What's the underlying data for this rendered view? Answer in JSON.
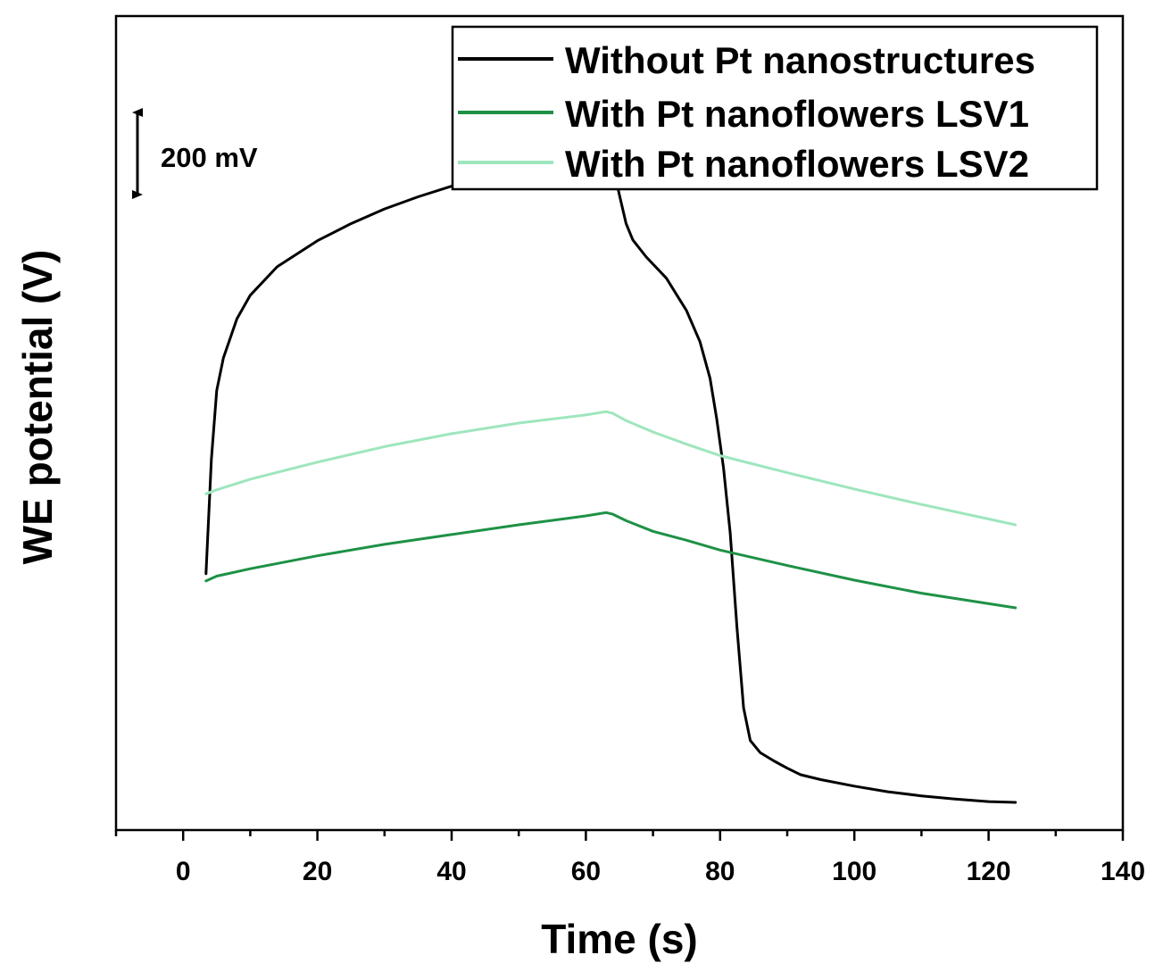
{
  "chart_data": {
    "type": "line",
    "title": "",
    "xlabel": "Time (s)",
    "ylabel": "WE potential (V)",
    "xlim": [
      -10,
      140
    ],
    "ylim": [
      0,
      1.0
    ],
    "x_ticks": [
      0,
      20,
      40,
      60,
      80,
      100,
      120,
      140
    ],
    "x_minor_step": 10,
    "y_ticks_shown": false,
    "scale_bar": {
      "label": "200 mV",
      "value_mV": 200
    },
    "legend_position": "top-right",
    "series": [
      {
        "name": "Without Pt nanostructures",
        "color": "#000000",
        "points": [
          [
            3.4,
            0.315
          ],
          [
            4.2,
            0.455
          ],
          [
            5,
            0.54
          ],
          [
            6,
            0.58
          ],
          [
            8,
            0.628
          ],
          [
            10,
            0.657
          ],
          [
            14,
            0.692
          ],
          [
            20,
            0.724
          ],
          [
            25,
            0.745
          ],
          [
            30,
            0.763
          ],
          [
            35,
            0.778
          ],
          [
            40,
            0.791
          ],
          [
            45,
            0.802
          ],
          [
            50,
            0.812
          ],
          [
            55,
            0.821
          ],
          [
            60,
            0.829
          ],
          [
            63,
            0.836
          ],
          [
            64,
            0.818
          ],
          [
            65,
            0.78
          ],
          [
            66,
            0.745
          ],
          [
            67,
            0.725
          ],
          [
            69,
            0.704
          ],
          [
            72,
            0.678
          ],
          [
            75,
            0.638
          ],
          [
            77,
            0.6
          ],
          [
            78.5,
            0.555
          ],
          [
            79.5,
            0.505
          ],
          [
            80.5,
            0.445
          ],
          [
            81.5,
            0.365
          ],
          [
            82.5,
            0.25
          ],
          [
            83.5,
            0.15
          ],
          [
            84.5,
            0.11
          ],
          [
            86,
            0.095
          ],
          [
            88,
            0.085
          ],
          [
            90,
            0.076
          ],
          [
            92,
            0.068
          ],
          [
            95,
            0.062
          ],
          [
            100,
            0.054
          ],
          [
            105,
            0.047
          ],
          [
            110,
            0.042
          ],
          [
            115,
            0.038
          ],
          [
            120,
            0.035
          ],
          [
            124,
            0.034
          ]
        ]
      },
      {
        "name": "With Pt nanoflowers LSV1",
        "color": "#1e9146",
        "points": [
          [
            3.4,
            0.306
          ],
          [
            5,
            0.312
          ],
          [
            10,
            0.321
          ],
          [
            20,
            0.337
          ],
          [
            30,
            0.351
          ],
          [
            40,
            0.363
          ],
          [
            50,
            0.375
          ],
          [
            60,
            0.386
          ],
          [
            63,
            0.39
          ],
          [
            64,
            0.388
          ],
          [
            66,
            0.38
          ],
          [
            70,
            0.367
          ],
          [
            75,
            0.356
          ],
          [
            80,
            0.344
          ],
          [
            90,
            0.325
          ],
          [
            100,
            0.307
          ],
          [
            110,
            0.291
          ],
          [
            124,
            0.273
          ]
        ]
      },
      {
        "name": "With Pt nanoflowers LSV2",
        "color": "#9ee6bd",
        "points": [
          [
            3.4,
            0.413
          ],
          [
            5,
            0.418
          ],
          [
            10,
            0.431
          ],
          [
            20,
            0.452
          ],
          [
            30,
            0.471
          ],
          [
            40,
            0.487
          ],
          [
            50,
            0.5
          ],
          [
            60,
            0.51
          ],
          [
            63,
            0.514
          ],
          [
            64,
            0.512
          ],
          [
            66,
            0.503
          ],
          [
            70,
            0.489
          ],
          [
            75,
            0.474
          ],
          [
            80,
            0.46
          ],
          [
            90,
            0.439
          ],
          [
            100,
            0.419
          ],
          [
            110,
            0.4
          ],
          [
            124,
            0.375
          ]
        ]
      }
    ]
  }
}
